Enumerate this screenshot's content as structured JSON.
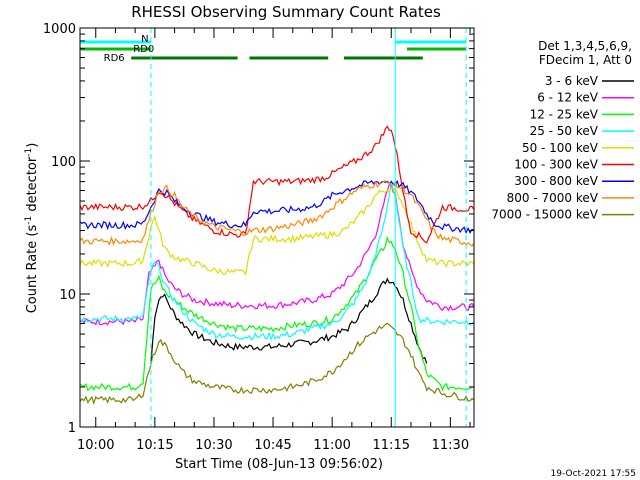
{
  "chart_data": {
    "type": "line",
    "title": "RHESSI Observing Summary Count Rates",
    "xlabel": "Start Time (08-Jun-13 09:56:02)",
    "ylabel_main": "Count Rate (s",
    "ylabel_sup1": "-1",
    "ylabel_mid": " detector",
    "ylabel_sup2": "-1",
    "ylabel_end": ")",
    "y_scale": "log",
    "ylim": [
      1,
      1000
    ],
    "xlim_minutes": [
      -4,
      96
    ],
    "x_ticks": [
      {
        "minute": 0,
        "label": "10:00"
      },
      {
        "minute": 15,
        "label": "10:15"
      },
      {
        "minute": 30,
        "label": "10:30"
      },
      {
        "minute": 45,
        "label": "10:45"
      },
      {
        "minute": 60,
        "label": "11:00"
      },
      {
        "minute": 75,
        "label": "11:15"
      },
      {
        "minute": 90,
        "label": "11:30"
      }
    ],
    "y_ticks": [
      {
        "value": 1,
        "label": "1"
      },
      {
        "value": 10,
        "label": "10"
      },
      {
        "value": 100,
        "label": "100"
      },
      {
        "value": 1000,
        "label": "1000"
      }
    ],
    "legend_header": [
      "Det 1,3,4,5,6,9,",
      "FDecim 1, Att 0"
    ],
    "legend_placement": "right",
    "series": [
      {
        "name": "3 - 6 keV",
        "color": "#000000",
        "points": [
          [
            14,
            3
          ],
          [
            15,
            7
          ],
          [
            16,
            9
          ],
          [
            17,
            10
          ],
          [
            18,
            9
          ],
          [
            20,
            7
          ],
          [
            22,
            6
          ],
          [
            25,
            5
          ],
          [
            30,
            4.3
          ],
          [
            35,
            4
          ],
          [
            40,
            4
          ],
          [
            45,
            4
          ],
          [
            50,
            4.2
          ],
          [
            55,
            4.4
          ],
          [
            60,
            4.8
          ],
          [
            64,
            5.5
          ],
          [
            67,
            7
          ],
          [
            70,
            9
          ],
          [
            72,
            11
          ],
          [
            74,
            13
          ],
          [
            76,
            12
          ],
          [
            78,
            9
          ],
          [
            80,
            6
          ],
          [
            82,
            4
          ],
          [
            84,
            3
          ]
        ]
      },
      {
        "name": "6 - 12 keV",
        "color": "#ff00ff",
        "points": [
          [
            -4,
            6.2
          ],
          [
            10,
            6.2
          ],
          [
            12,
            6.5
          ],
          [
            13.5,
            14
          ],
          [
            15,
            16
          ],
          [
            16,
            18
          ],
          [
            17,
            15
          ],
          [
            18,
            13
          ],
          [
            20,
            11
          ],
          [
            22,
            10
          ],
          [
            25,
            9
          ],
          [
            30,
            8.5
          ],
          [
            35,
            8.2
          ],
          [
            40,
            8.2
          ],
          [
            45,
            8.2
          ],
          [
            50,
            8.5
          ],
          [
            55,
            9
          ],
          [
            60,
            10
          ],
          [
            63,
            12
          ],
          [
            66,
            15
          ],
          [
            69,
            21
          ],
          [
            71,
            28
          ],
          [
            73,
            45
          ],
          [
            74,
            60
          ],
          [
            75,
            68
          ],
          [
            76,
            55
          ],
          [
            77,
            38
          ],
          [
            78,
            24
          ],
          [
            80,
            15
          ],
          [
            82,
            11
          ],
          [
            84,
            9
          ],
          [
            86,
            8.5
          ],
          [
            88,
            8
          ],
          [
            92,
            8
          ],
          [
            96,
            8
          ]
        ]
      },
      {
        "name": "12 - 25 keV",
        "color": "#00ff00",
        "points": [
          [
            -4,
            2
          ],
          [
            10,
            2
          ],
          [
            12,
            2.2
          ],
          [
            14,
            11
          ],
          [
            15,
            12
          ],
          [
            16,
            13
          ],
          [
            17,
            11
          ],
          [
            18,
            10
          ],
          [
            20,
            9
          ],
          [
            22,
            8
          ],
          [
            25,
            7
          ],
          [
            30,
            6
          ],
          [
            35,
            5.5
          ],
          [
            40,
            5.5
          ],
          [
            45,
            5.5
          ],
          [
            50,
            5.8
          ],
          [
            55,
            6
          ],
          [
            60,
            6.5
          ],
          [
            63,
            8
          ],
          [
            66,
            10
          ],
          [
            69,
            14
          ],
          [
            71,
            18
          ],
          [
            73,
            22
          ],
          [
            74,
            26
          ],
          [
            76,
            22
          ],
          [
            78,
            14
          ],
          [
            80,
            8
          ],
          [
            82,
            4
          ],
          [
            84,
            2.5
          ],
          [
            88,
            2
          ],
          [
            92,
            2
          ],
          [
            96,
            2
          ]
        ]
      },
      {
        "name": "25 - 50 keV",
        "color": "#00ffff",
        "points": [
          [
            -4,
            6.5
          ],
          [
            10,
            6.5
          ],
          [
            12,
            6.8
          ],
          [
            14,
            15
          ],
          [
            15,
            17
          ],
          [
            16,
            16
          ],
          [
            17,
            13
          ],
          [
            18,
            11
          ],
          [
            20,
            9
          ],
          [
            22,
            7.5
          ],
          [
            25,
            6
          ],
          [
            30,
            5
          ],
          [
            35,
            4.8
          ],
          [
            40,
            4.8
          ],
          [
            45,
            4.8
          ],
          [
            50,
            5
          ],
          [
            55,
            5.5
          ],
          [
            60,
            6
          ],
          [
            63,
            7
          ],
          [
            66,
            9
          ],
          [
            69,
            13
          ],
          [
            71,
            20
          ],
          [
            73,
            32
          ],
          [
            74,
            45
          ],
          [
            75,
            72
          ],
          [
            76,
            55
          ],
          [
            77,
            35
          ],
          [
            78,
            22
          ],
          [
            80,
            12
          ],
          [
            82,
            6.5
          ],
          [
            84,
            6.3
          ],
          [
            88,
            6.2
          ],
          [
            92,
            6.2
          ],
          [
            96,
            6.2
          ]
        ]
      },
      {
        "name": "50 - 100 keV",
        "color": "#dddd00",
        "points": [
          [
            -4,
            17
          ],
          [
            10,
            17
          ],
          [
            12,
            18
          ],
          [
            14,
            32
          ],
          [
            15,
            38
          ],
          [
            16,
            30
          ],
          [
            17,
            24
          ],
          [
            18,
            21
          ],
          [
            20,
            19
          ],
          [
            22,
            18
          ],
          [
            25,
            17
          ],
          [
            30,
            15
          ],
          [
            35,
            14.5
          ],
          [
            38,
            14.5
          ],
          [
            40,
            26
          ],
          [
            45,
            26
          ],
          [
            50,
            26
          ],
          [
            55,
            27
          ],
          [
            60,
            28
          ],
          [
            63,
            30
          ],
          [
            66,
            36
          ],
          [
            69,
            45
          ],
          [
            71,
            55
          ],
          [
            73,
            60
          ],
          [
            75,
            62
          ],
          [
            77,
            55
          ],
          [
            79,
            40
          ],
          [
            81,
            28
          ],
          [
            84,
            18
          ],
          [
            88,
            17
          ],
          [
            92,
            17
          ],
          [
            96,
            17
          ]
        ]
      },
      {
        "name": "100 - 300 keV",
        "color": "#ff0000",
        "points": [
          [
            -4,
            45
          ],
          [
            10,
            45
          ],
          [
            12,
            46
          ],
          [
            14,
            50
          ],
          [
            16,
            60
          ],
          [
            18,
            55
          ],
          [
            20,
            48
          ],
          [
            22,
            42
          ],
          [
            25,
            36
          ],
          [
            30,
            30
          ],
          [
            35,
            28
          ],
          [
            38,
            28
          ],
          [
            40,
            70
          ],
          [
            45,
            70
          ],
          [
            50,
            70
          ],
          [
            55,
            72
          ],
          [
            58,
            75
          ],
          [
            60,
            80
          ],
          [
            63,
            90
          ],
          [
            66,
            100
          ],
          [
            69,
            115
          ],
          [
            71,
            130
          ],
          [
            73,
            160
          ],
          [
            74,
            180
          ],
          [
            75,
            175
          ],
          [
            76,
            130
          ],
          [
            77,
            90
          ],
          [
            78,
            60
          ],
          [
            79,
            40
          ],
          [
            80,
            30
          ],
          [
            84,
            25
          ],
          [
            88,
            45
          ],
          [
            92,
            44
          ],
          [
            96,
            43
          ]
        ]
      },
      {
        "name": "300 - 800 keV",
        "color": "#0000ff",
        "points": [
          [
            -4,
            33
          ],
          [
            10,
            33
          ],
          [
            12,
            34
          ],
          [
            14,
            45
          ],
          [
            16,
            60
          ],
          [
            18,
            58
          ],
          [
            20,
            50
          ],
          [
            22,
            45
          ],
          [
            25,
            40
          ],
          [
            30,
            35
          ],
          [
            35,
            33
          ],
          [
            38,
            33
          ],
          [
            40,
            42
          ],
          [
            45,
            42
          ],
          [
            50,
            43
          ],
          [
            55,
            45
          ],
          [
            58,
            50
          ],
          [
            60,
            55
          ],
          [
            63,
            60
          ],
          [
            66,
            64
          ],
          [
            69,
            68
          ],
          [
            72,
            70
          ],
          [
            75,
            70
          ],
          [
            78,
            65
          ],
          [
            80,
            58
          ],
          [
            82,
            50
          ],
          [
            84,
            40
          ],
          [
            86,
            34
          ],
          [
            88,
            32
          ],
          [
            92,
            31
          ],
          [
            96,
            30
          ]
        ]
      },
      {
        "name": "800 - 7000 keV",
        "color": "#ff8800",
        "points": [
          [
            -4,
            25
          ],
          [
            10,
            25
          ],
          [
            12,
            26
          ],
          [
            14,
            40
          ],
          [
            16,
            60
          ],
          [
            18,
            62
          ],
          [
            20,
            55
          ],
          [
            22,
            45
          ],
          [
            25,
            38
          ],
          [
            30,
            32
          ],
          [
            35,
            30
          ],
          [
            38,
            29
          ],
          [
            40,
            30
          ],
          [
            45,
            31
          ],
          [
            50,
            33
          ],
          [
            55,
            36
          ],
          [
            58,
            40
          ],
          [
            60,
            45
          ],
          [
            63,
            52
          ],
          [
            66,
            60
          ],
          [
            69,
            65
          ],
          [
            72,
            68
          ],
          [
            75,
            68
          ],
          [
            78,
            62
          ],
          [
            80,
            55
          ],
          [
            82,
            45
          ],
          [
            84,
            36
          ],
          [
            86,
            29
          ],
          [
            88,
            26
          ],
          [
            92,
            25
          ],
          [
            96,
            24
          ]
        ]
      },
      {
        "name": "7000 - 15000 keV",
        "color": "#808000",
        "points": [
          [
            -4,
            1.6
          ],
          [
            10,
            1.6
          ],
          [
            12,
            1.8
          ],
          [
            14,
            3
          ],
          [
            16,
            4.5
          ],
          [
            18,
            4
          ],
          [
            20,
            3.2
          ],
          [
            22,
            2.6
          ],
          [
            25,
            2.2
          ],
          [
            30,
            2
          ],
          [
            35,
            1.9
          ],
          [
            40,
            1.9
          ],
          [
            45,
            1.9
          ],
          [
            50,
            2
          ],
          [
            55,
            2.2
          ],
          [
            60,
            2.6
          ],
          [
            63,
            3.2
          ],
          [
            66,
            4
          ],
          [
            69,
            4.8
          ],
          [
            72,
            5.5
          ],
          [
            74,
            5.8
          ],
          [
            76,
            5.2
          ],
          [
            78,
            4.5
          ],
          [
            80,
            3.5
          ],
          [
            82,
            2.5
          ],
          [
            84,
            2
          ],
          [
            88,
            1.8
          ],
          [
            92,
            1.7
          ],
          [
            96,
            1.6
          ]
        ]
      }
    ],
    "vlines": [
      {
        "minute": 14,
        "style": "dashed"
      },
      {
        "minute": 76,
        "style": "solid"
      },
      {
        "minute": 94,
        "style": "dashed"
      }
    ],
    "state_bars": [
      {
        "label": "N",
        "color": "#00ffff",
        "segments": [
          [
            -4,
            14
          ],
          [
            76,
            94
          ]
        ]
      },
      {
        "label": "RD0",
        "color": "#00bb00",
        "segments": [
          [
            -4,
            14
          ],
          [
            79,
            94
          ]
        ]
      },
      {
        "label": "RD6",
        "color": "#007700",
        "segments": [
          [
            9,
            36
          ],
          [
            39,
            59
          ],
          [
            63,
            83
          ]
        ]
      }
    ],
    "timestamp": "19-Oct-2021 17:55"
  }
}
